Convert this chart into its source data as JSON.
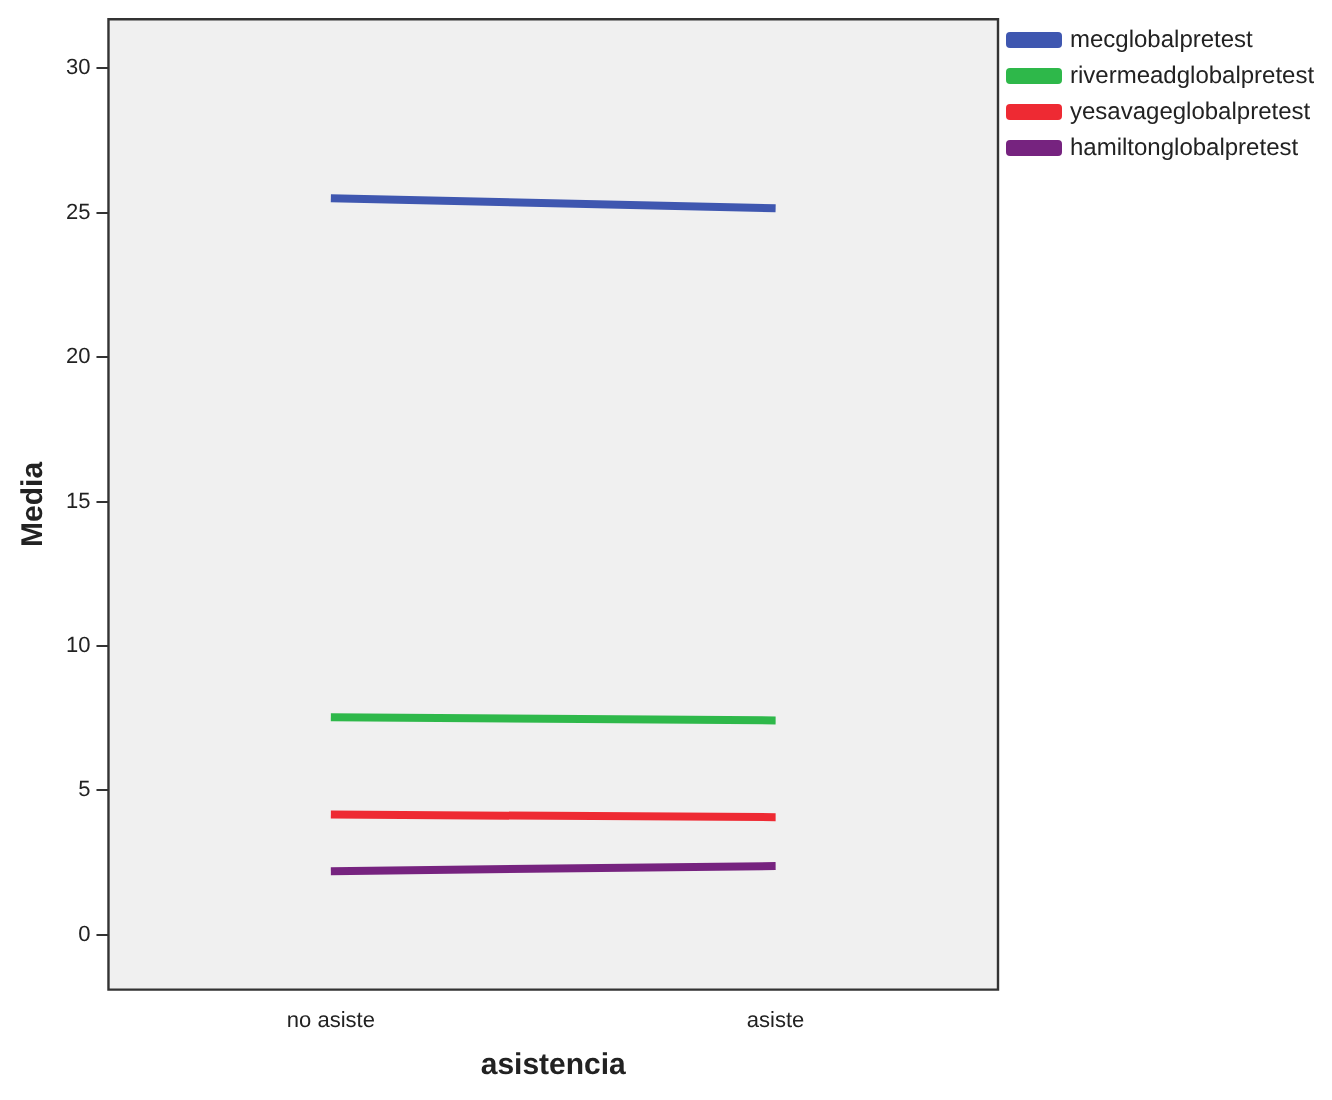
{
  "chart_data": {
    "type": "line",
    "xlabel": "asistencia",
    "ylabel": "Media",
    "categories": [
      "no asiste",
      "asiste"
    ],
    "series": [
      {
        "name": "mecglobalpretest",
        "color": "#3f57b0",
        "values": [
          25.5,
          25.15
        ]
      },
      {
        "name": "rivermeadglobalpretest",
        "color": "#2eb84a",
        "values": [
          7.53,
          7.42
        ]
      },
      {
        "name": "yesavageglobalpretest",
        "color": "#ee2a33",
        "values": [
          4.16,
          4.07
        ]
      },
      {
        "name": "hamiltonglobalpretest",
        "color": "#76237f",
        "values": [
          2.2,
          2.38
        ]
      }
    ],
    "ylim": [
      -1.9,
      31.7
    ],
    "yticks": [
      0,
      5,
      10,
      15,
      20,
      25,
      30
    ],
    "grid": false,
    "legend": "top right",
    "marker": "none",
    "line_style": "solid"
  }
}
